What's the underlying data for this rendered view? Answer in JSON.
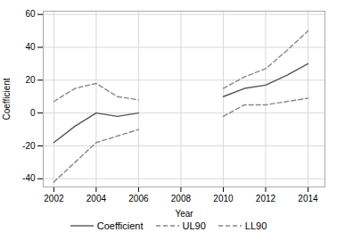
{
  "chart_data": {
    "type": "line",
    "title": "",
    "xlabel": "Year",
    "ylabel": "Coefficient",
    "x": [
      2002,
      2003,
      2004,
      2005,
      2006,
      2007,
      2008,
      2009,
      2010,
      2011,
      2012,
      2013,
      2014
    ],
    "series": [
      {
        "name": "Coefficient",
        "color": "#555555",
        "line_style": "solid",
        "values": [
          -18,
          -8,
          0,
          -2,
          0,
          null,
          null,
          null,
          10,
          15,
          17,
          23,
          30
        ]
      },
      {
        "name": "UL90",
        "color": "#888888",
        "line_style": "dashed",
        "values": [
          7,
          15,
          18,
          10,
          8,
          null,
          null,
          null,
          15,
          22,
          27,
          38,
          50
        ]
      },
      {
        "name": "LL90",
        "color": "#888888",
        "line_style": "dashed",
        "values": [
          -42,
          -30,
          -18,
          -14,
          -10,
          null,
          null,
          null,
          -2,
          5,
          5,
          7,
          9
        ]
      }
    ],
    "xlim": [
      2001.5,
      2014.8
    ],
    "xticks": [
      2002,
      2004,
      2006,
      2008,
      2010,
      2012,
      2014
    ],
    "ylim": [
      -45,
      62
    ],
    "yticks": [
      -40,
      -20,
      0,
      20,
      40,
      60
    ],
    "grid": true,
    "legend": "bottom"
  }
}
